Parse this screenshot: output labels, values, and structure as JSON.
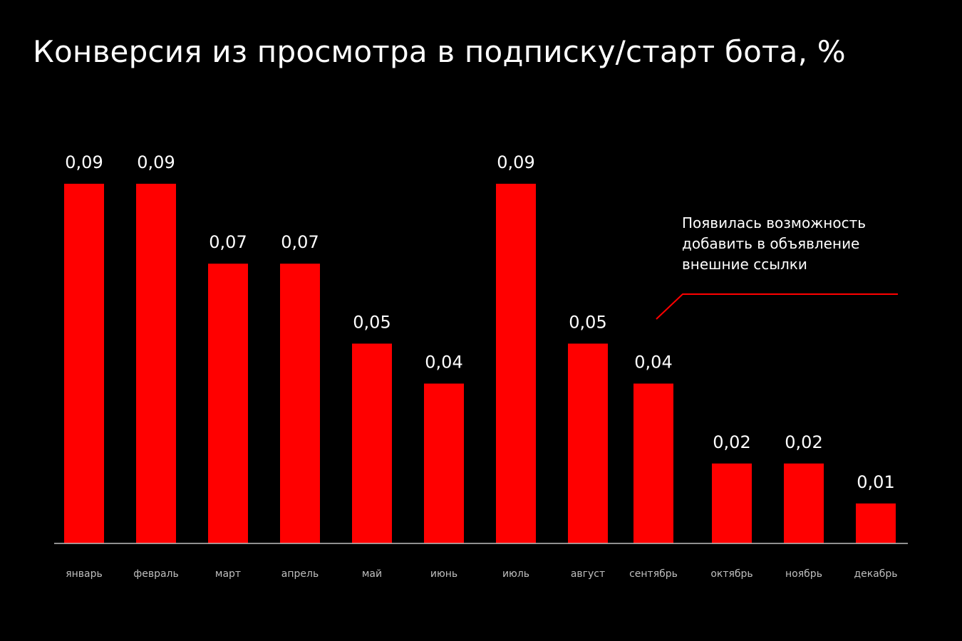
{
  "chart_data": {
    "type": "bar",
    "title": "Конверсия из просмотра в подписку/старт бота, %",
    "categories": [
      "январь",
      "февраль",
      "март",
      "апрель",
      "май",
      "июнь",
      "июль",
      "август",
      "сентябрь",
      "октябрь",
      "ноябрь",
      "декабрь"
    ],
    "values": [
      0.09,
      0.09,
      0.07,
      0.07,
      0.05,
      0.04,
      0.09,
      0.05,
      0.04,
      0.02,
      0.02,
      0.01
    ],
    "value_labels": [
      "0,09",
      "0,09",
      "0,07",
      "0,07",
      "0,05",
      "0,04",
      "0,09",
      "0,05",
      "0,04",
      "0,02",
      "0,02",
      "0,01"
    ],
    "ylim": [
      0,
      0.09
    ],
    "grid": false,
    "bar_color": "#ff0000",
    "annotation": {
      "text": "Появилась возможность\nдобавить в объявление\nвнешние ссылки",
      "after_category": "сентябрь"
    }
  }
}
